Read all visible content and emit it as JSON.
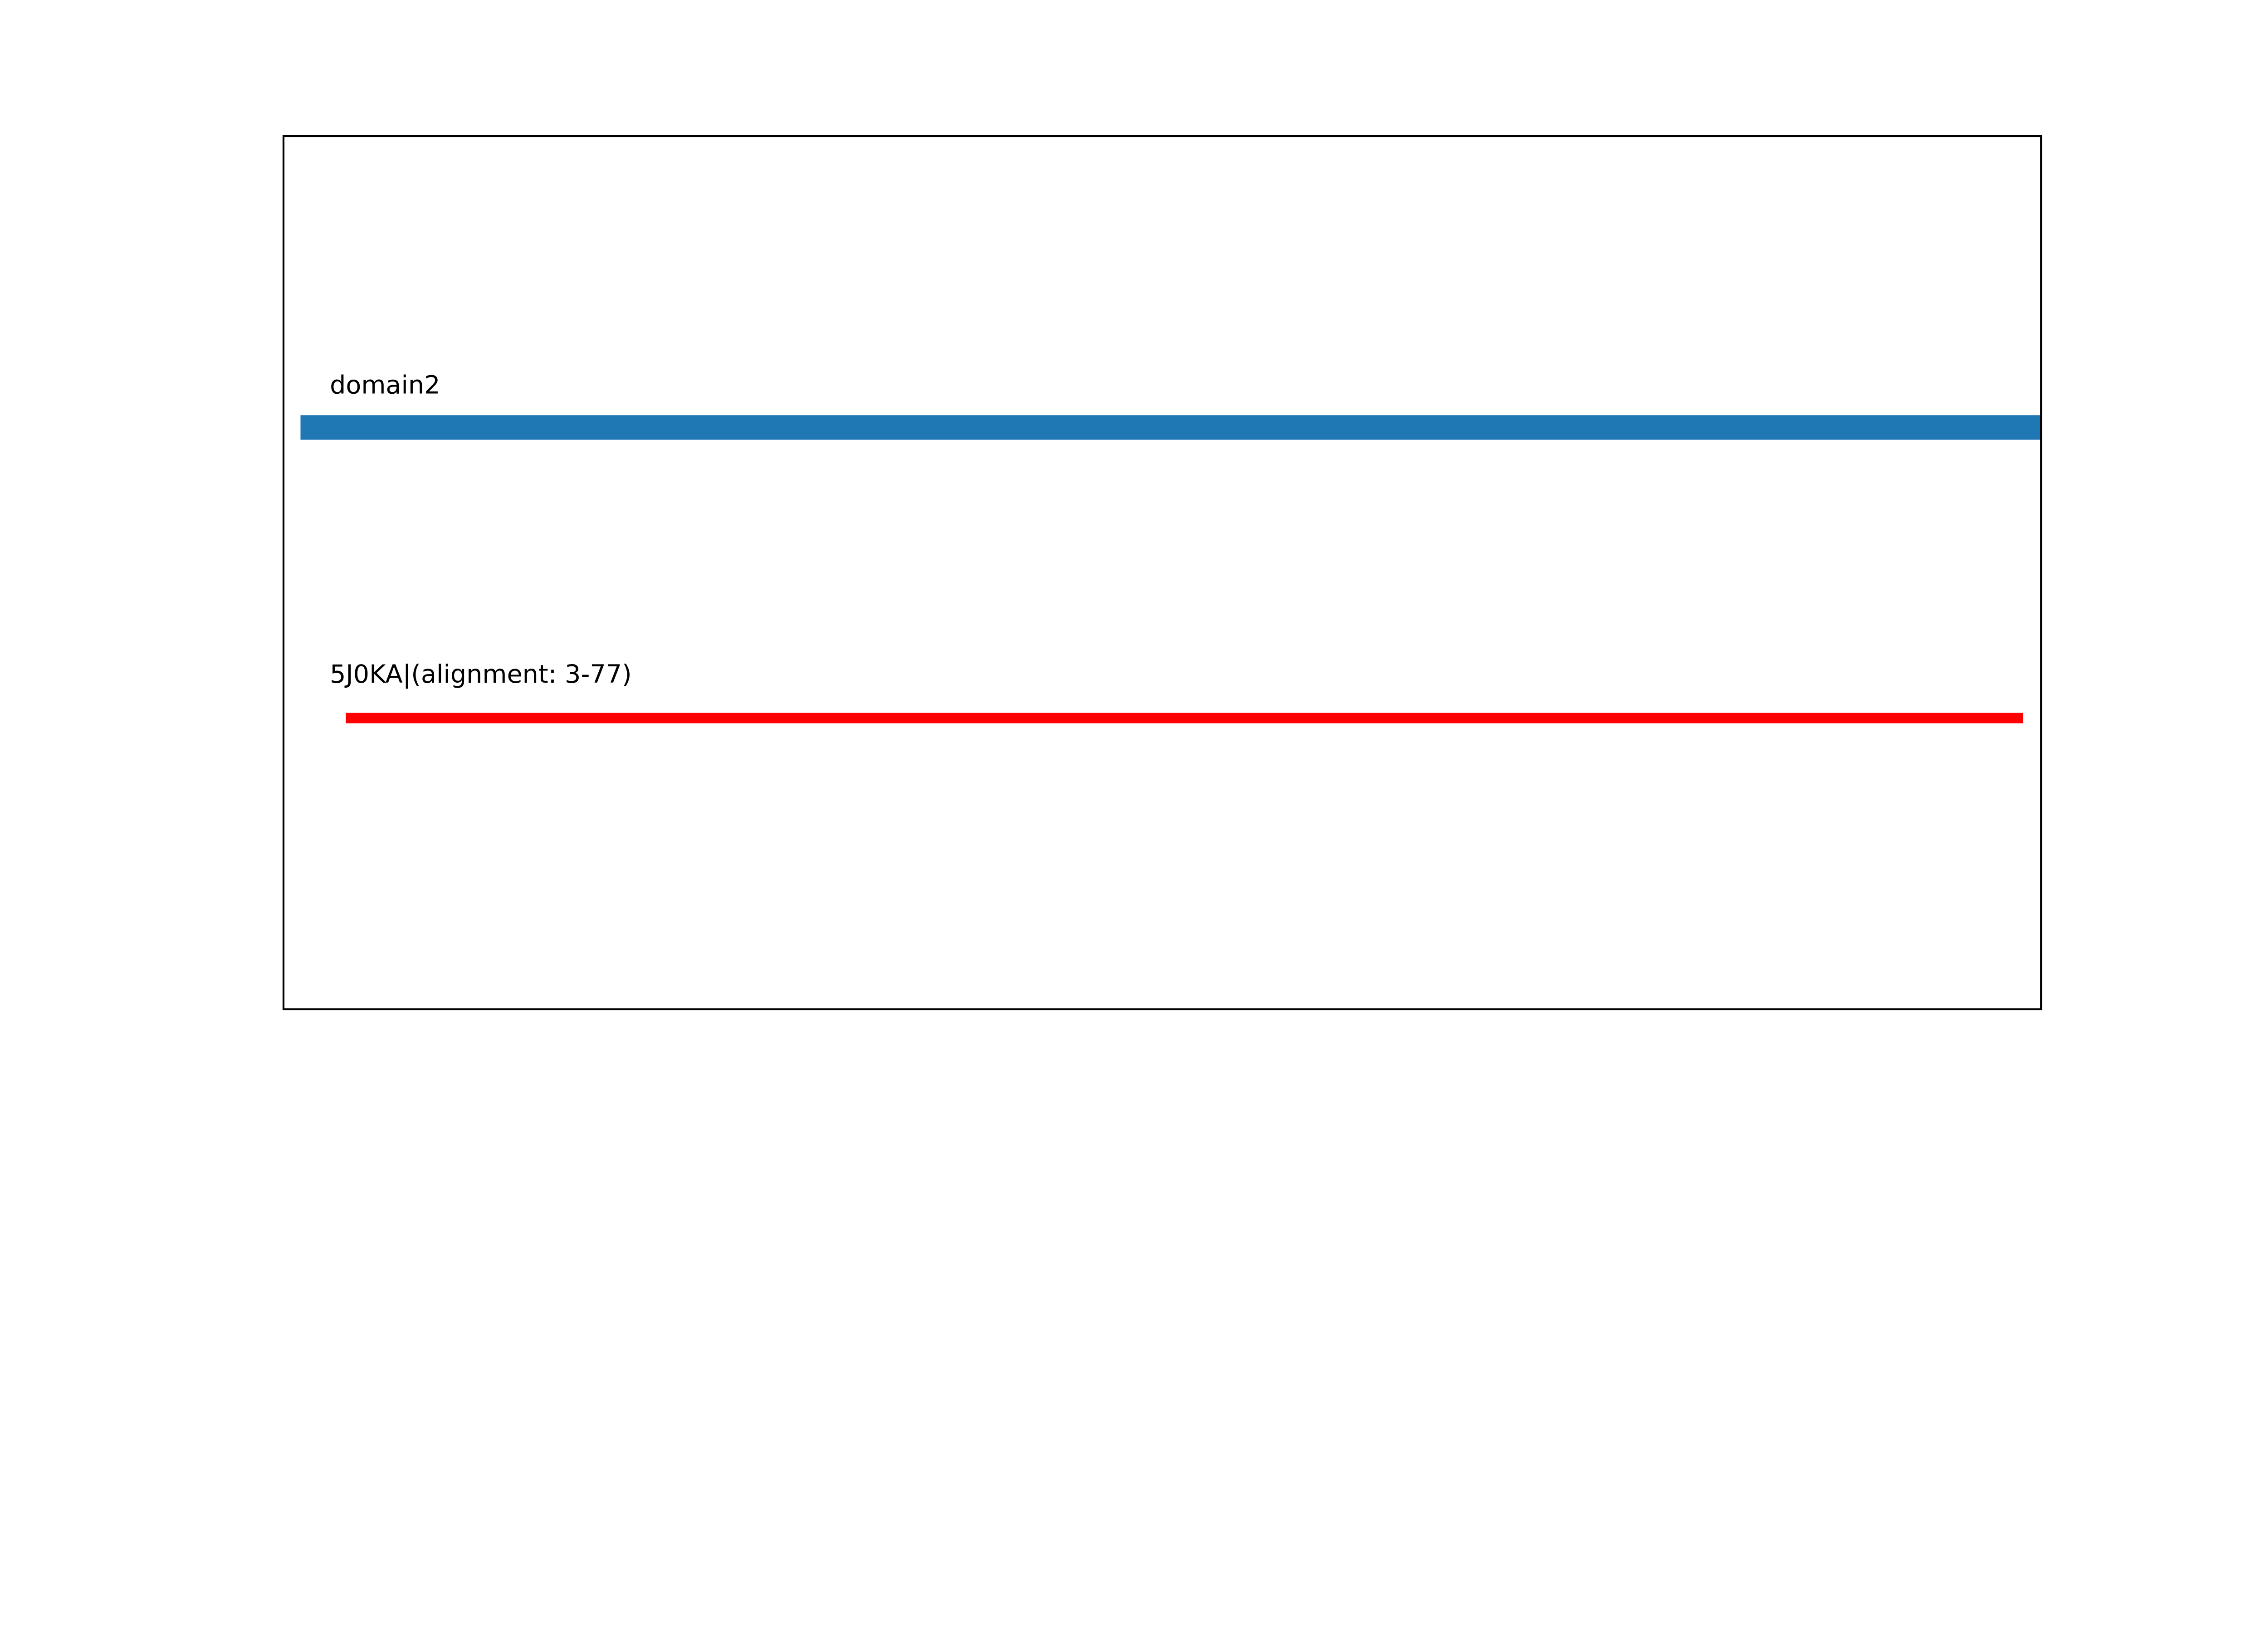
{
  "chart_data": {
    "type": "bar",
    "title": "",
    "xlabel": "",
    "ylabel": "",
    "xlim": [
      0.25,
      77.8
    ],
    "grid": false,
    "ticks_visible": false,
    "series": [
      {
        "label": "domain2",
        "start": 1,
        "end": 80,
        "color": "#1f77b4"
      },
      {
        "label": "5J0KA|(alignment: 3-77)",
        "start": 3,
        "end": 77,
        "color": "#ff0000"
      }
    ]
  }
}
